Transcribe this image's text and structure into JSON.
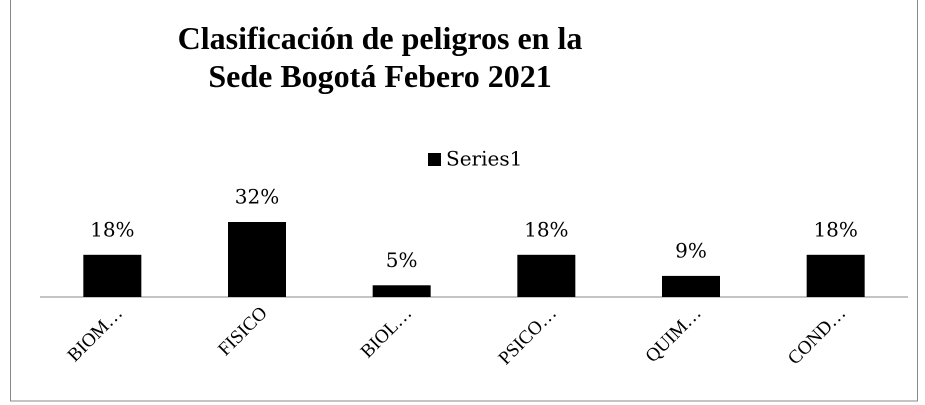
{
  "chart_data": {
    "type": "bar",
    "title": "Clasificación de peligros en la Sede Bogotá Febero 2021",
    "categories": [
      "BIOM…",
      "FISICO",
      "BIOL…",
      "PSICO…",
      "QUIM…",
      "COND…"
    ],
    "series": [
      {
        "name": "Series1",
        "color": "#000000",
        "values": [
          18,
          32,
          5,
          18,
          9,
          18
        ],
        "value_labels": [
          "18%",
          "32%",
          "5%",
          "18%",
          "9%",
          "18%"
        ]
      }
    ],
    "legend": "top"
  }
}
